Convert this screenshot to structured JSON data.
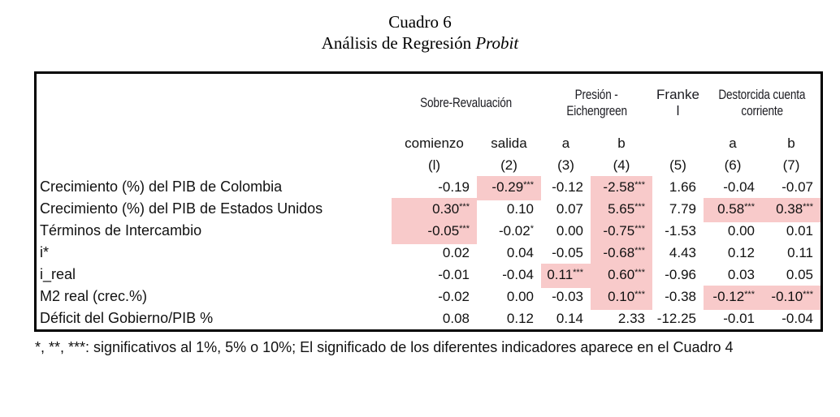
{
  "title": {
    "line1": "Cuadro 6",
    "line2_regular": "Análisis de Regresión ",
    "line2_italic": "Probit"
  },
  "table": {
    "group_headers": [
      {
        "lines": [
          "Sobre-Revaluación"
        ],
        "condensed": true
      },
      {
        "lines": [
          "Presión -",
          "Eichengreen"
        ],
        "condensed": true
      },
      {
        "lines": [
          "Franke",
          "l"
        ],
        "condensed": false
      },
      {
        "lines": [
          "Destorcida cuenta",
          "corriente"
        ],
        "condensed": true
      }
    ],
    "sub_headers": [
      "comienzo",
      "salida",
      "a",
      "b",
      "",
      "a",
      "b"
    ],
    "column_numbers": [
      "(l)",
      "(2)",
      "(3)",
      "(4)",
      "(5)",
      "(6)",
      "(7)"
    ],
    "rows": [
      {
        "label": "Crecimiento (%) del PIB de Colombia",
        "cells": [
          {
            "v": "-0.19",
            "sup": "",
            "hl": false
          },
          {
            "v": "-0.29",
            "sup": "***",
            "hl": true
          },
          {
            "v": "-0.12",
            "sup": "",
            "hl": false
          },
          {
            "v": "-2.58",
            "sup": "***",
            "hl": true
          },
          {
            "v": "1.66",
            "sup": "",
            "hl": false
          },
          {
            "v": "-0.04",
            "sup": "",
            "hl": false
          },
          {
            "v": "-0.07",
            "sup": "",
            "hl": false
          }
        ]
      },
      {
        "label": "Crecimiento (%) del PIB de Estados Unidos",
        "cells": [
          {
            "v": "0.30",
            "sup": "***",
            "hl": true
          },
          {
            "v": "0.10",
            "sup": "",
            "hl": false
          },
          {
            "v": "0.07",
            "sup": "",
            "hl": false
          },
          {
            "v": "5.65",
            "sup": "***",
            "hl": true
          },
          {
            "v": "7.79",
            "sup": "",
            "hl": false
          },
          {
            "v": "0.58",
            "sup": "***",
            "hl": true
          },
          {
            "v": "0.38",
            "sup": "***",
            "hl": true
          }
        ]
      },
      {
        "label": "Términos de Intercambio",
        "cells": [
          {
            "v": "-0.05",
            "sup": "***",
            "hl": true
          },
          {
            "v": "-0.02",
            "sup": "*",
            "hl": false
          },
          {
            "v": "0.00",
            "sup": "",
            "hl": false
          },
          {
            "v": "-0.75",
            "sup": "***",
            "hl": true
          },
          {
            "v": "-1.53",
            "sup": "",
            "hl": false
          },
          {
            "v": "0.00",
            "sup": "",
            "hl": false
          },
          {
            "v": "0.01",
            "sup": "",
            "hl": false
          }
        ]
      },
      {
        "label": "i*",
        "cells": [
          {
            "v": "0.02",
            "sup": "",
            "hl": false
          },
          {
            "v": "0.04",
            "sup": "",
            "hl": false
          },
          {
            "v": "-0.05",
            "sup": "",
            "hl": false
          },
          {
            "v": "-0.68",
            "sup": "***",
            "hl": true
          },
          {
            "v": "4.43",
            "sup": "",
            "hl": false
          },
          {
            "v": "0.12",
            "sup": "",
            "hl": false
          },
          {
            "v": "0.11",
            "sup": "",
            "hl": false
          }
        ]
      },
      {
        "label": "i_real",
        "cells": [
          {
            "v": "-0.01",
            "sup": "",
            "hl": false
          },
          {
            "v": "-0.04",
            "sup": "",
            "hl": false
          },
          {
            "v": "0.11",
            "sup": "***",
            "hl": true
          },
          {
            "v": "0.60",
            "sup": "***",
            "hl": true
          },
          {
            "v": "-0.96",
            "sup": "",
            "hl": false
          },
          {
            "v": "0.03",
            "sup": "",
            "hl": false
          },
          {
            "v": "0.05",
            "sup": "",
            "hl": false
          }
        ]
      },
      {
        "label": "M2 real (crec.%)",
        "cells": [
          {
            "v": "-0.02",
            "sup": "",
            "hl": false
          },
          {
            "v": "0.00",
            "sup": "",
            "hl": false
          },
          {
            "v": "-0.03",
            "sup": "",
            "hl": false
          },
          {
            "v": "0.10",
            "sup": "***",
            "hl": true
          },
          {
            "v": "-0.38",
            "sup": "",
            "hl": false
          },
          {
            "v": "-0.12",
            "sup": "***",
            "hl": true
          },
          {
            "v": "-0.10",
            "sup": "***",
            "hl": true
          }
        ]
      },
      {
        "label": "Déficit del Gobierno/PIB %",
        "cells": [
          {
            "v": "0.08",
            "sup": "",
            "hl": false
          },
          {
            "v": "0.12",
            "sup": "",
            "hl": false
          },
          {
            "v": "0.14",
            "sup": "",
            "hl": false
          },
          {
            "v": "2.33",
            "sup": "",
            "hl": false
          },
          {
            "v": "-12.25",
            "sup": "",
            "hl": false
          },
          {
            "v": "-0.01",
            "sup": "",
            "hl": false
          },
          {
            "v": "-0.04",
            "sup": "",
            "hl": false
          }
        ]
      }
    ]
  },
  "footnote": "*, **, ***: significativos al 1%, 5% o 10%; El significado de los diferentes indicadores aparece en el Cuadro 4",
  "colors": {
    "highlight": "#f8caca",
    "border": "#000000",
    "text": "#111111"
  }
}
